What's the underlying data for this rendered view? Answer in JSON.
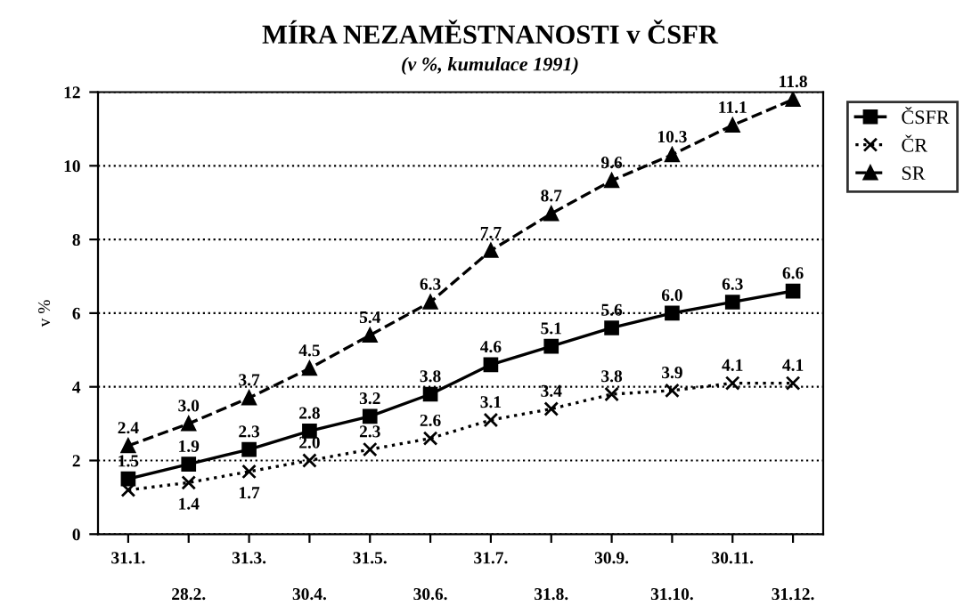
{
  "chart_data": {
    "type": "line",
    "title": "MÍRA NEZAMĚSTNANOSTI v ČSFR",
    "subtitle": "(v %, kumulace 1991)",
    "ylabel": "v %",
    "categories": [
      "31.1.",
      "28.2.",
      "31.3.",
      "30.4.",
      "31.5.",
      "30.6.",
      "31.7.",
      "31.8.",
      "30.9.",
      "31.10.",
      "30.11.",
      "31.12."
    ],
    "series": [
      {
        "name": "ČSFR",
        "color": "#000000",
        "marker": "square",
        "line_style": "solid",
        "values": [
          1.5,
          1.9,
          2.3,
          2.8,
          3.2,
          3.8,
          4.6,
          5.1,
          5.6,
          6.0,
          6.3,
          6.6
        ],
        "value_labels": [
          "1.5",
          "1.9",
          "2.3",
          "2.8",
          "3.2",
          "3.8",
          "4.6",
          "5.1",
          "5.6",
          "6.0",
          "6.3",
          "6.6"
        ]
      },
      {
        "name": "ČR",
        "color": "#000000",
        "marker": "cross",
        "line_style": "dotted",
        "values": [
          1.2,
          1.4,
          1.7,
          2.0,
          2.3,
          2.6,
          3.1,
          3.4,
          3.8,
          3.9,
          4.1,
          4.1
        ],
        "value_labels": [
          null,
          "1.4",
          "1.7",
          "2.0",
          "2.3",
          "2.6",
          "3.1",
          "3.4",
          "3.8",
          "3.9",
          "4.1",
          "4.1"
        ]
      },
      {
        "name": "SR",
        "color": "#000000",
        "marker": "triangle",
        "line_style": "dashed",
        "values": [
          2.4,
          3.0,
          3.7,
          4.5,
          5.4,
          6.3,
          7.7,
          8.7,
          9.6,
          10.3,
          11.1,
          11.8
        ],
        "value_labels": [
          "2.4",
          "3.0",
          "3.7",
          "4.5",
          "5.4",
          "6.3",
          "7.7",
          "8.7",
          "9.6",
          "10.3",
          "11.1",
          "11.8"
        ]
      }
    ],
    "ylim": [
      0,
      12
    ],
    "yticks": [
      0,
      2,
      4,
      6,
      8,
      10,
      12
    ],
    "grid": "y",
    "legend": "right"
  }
}
